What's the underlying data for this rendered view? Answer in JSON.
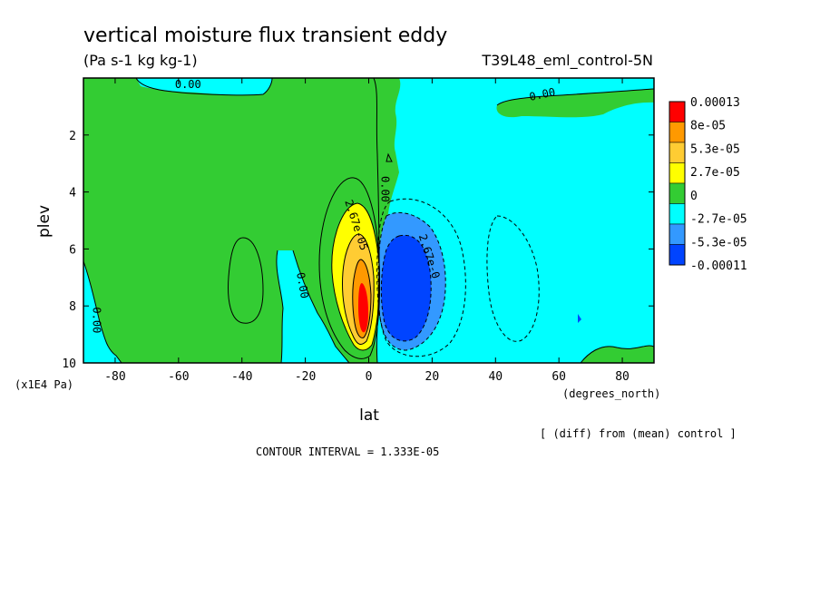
{
  "chart_data": {
    "type": "heatmap",
    "title": "vertical moisture flux transient eddy",
    "subtitle": "(Pa s-1 kg kg-1)",
    "run_label": "T39L48_eml_control-5N",
    "xlabel": "lat",
    "xunits": "(degrees_north)",
    "ylabel": "plev",
    "yunits": "(x1E4 Pa)",
    "xlim": [
      -90,
      90
    ],
    "ylim": [
      0,
      10
    ],
    "y_inverted": true,
    "x_ticks": [
      -80,
      -60,
      -40,
      -20,
      0,
      20,
      40,
      60,
      80
    ],
    "y_ticks": [
      2,
      4,
      6,
      8,
      10
    ],
    "contour_interval_text": "CONTOUR INTERVAL = 1.333E-05",
    "diff_note": "[ (diff) from (mean) control ]",
    "colorbar": {
      "labels": [
        "0.00013",
        "8e-05",
        "5.3e-05",
        "2.7e-05",
        "0",
        "-2.7e-05",
        "-5.3e-05",
        "-0.00011"
      ],
      "colors": [
        "#ff0000",
        "#ff9900",
        "#ffcc33",
        "#ffff00",
        "#33cc33",
        "#00ffff",
        "#3399ff",
        "#0044ff"
      ]
    },
    "contour_labels": [
      {
        "text": "0.00",
        "lat": -57,
        "plev": 0.35
      },
      {
        "text": "0.00",
        "lat": 55,
        "plev": 0.7
      },
      {
        "text": "0.00",
        "lat": 4,
        "plev": 3.9
      },
      {
        "text": "0.00",
        "lat": -22,
        "plev": 7.3
      },
      {
        "text": "0.00",
        "lat": -87,
        "plev": 8.5
      },
      {
        "text": "2.67e-05",
        "lat": -5,
        "plev": 5.2
      },
      {
        "text": "2.67e-0",
        "lat": 18,
        "plev": 6.3
      }
    ]
  }
}
